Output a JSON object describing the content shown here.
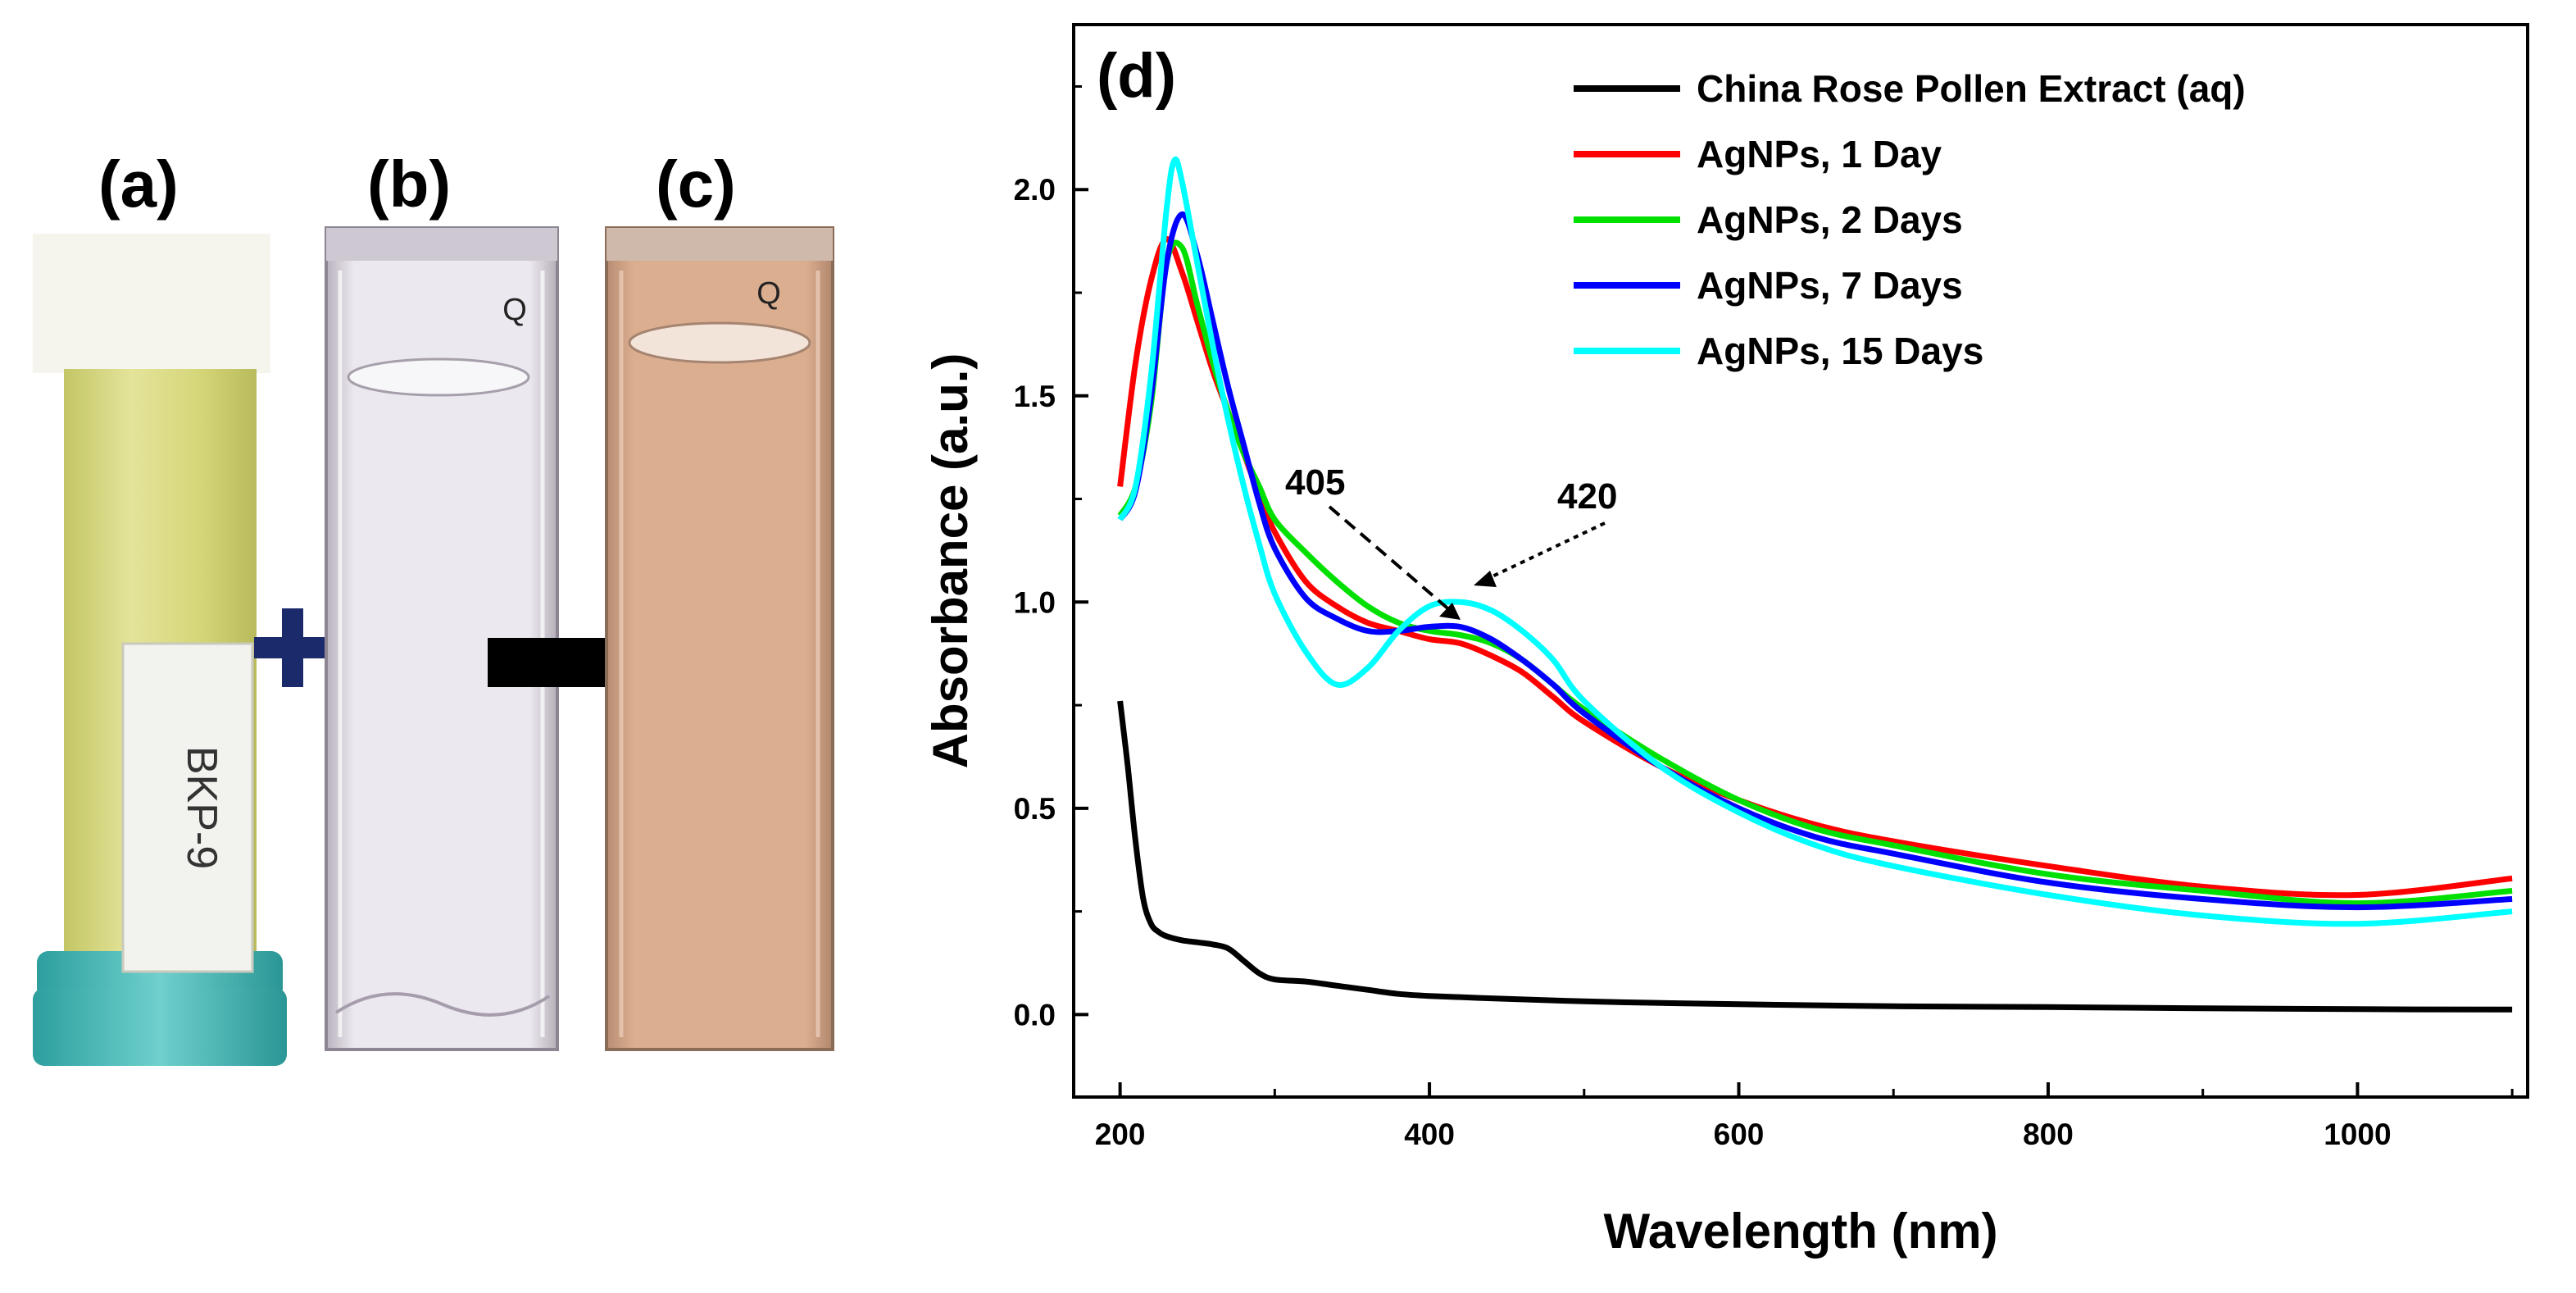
{
  "panels": {
    "a": {
      "label": "(a)",
      "tube_label": "BKP-9"
    },
    "b": {
      "label": "(b)",
      "mark": "Q"
    },
    "c": {
      "label": "(c)",
      "mark": "Q"
    },
    "d": {
      "label": "(d)"
    }
  },
  "colors": {
    "pollen_tube": "#d9da7a",
    "cap": "#49b8b6",
    "cuvette_clear": "#e7e3ea",
    "cuvette_brown": "#d8a98a",
    "plus": "#1b2a6b",
    "arrow": "#000000"
  },
  "chart_data": {
    "type": "line",
    "title": "",
    "xlabel": "Wavelength (nm)",
    "ylabel": "Absorbance (a.u.)",
    "xlim": [
      170,
      1110
    ],
    "ylim": [
      -0.2,
      2.4
    ],
    "xticks": [
      200,
      400,
      600,
      800,
      1000
    ],
    "yticks": [
      0.0,
      0.5,
      1.0,
      1.5,
      2.0
    ],
    "xtick_labels": [
      "200",
      "400",
      "600",
      "800",
      "1000"
    ],
    "ytick_labels": [
      "0.0",
      "0.5",
      "1.0",
      "1.5",
      "2.0"
    ],
    "legend_position": "top-right",
    "grid": false,
    "annotations": [
      {
        "text": "405",
        "x": 405
      },
      {
        "text": "420",
        "x": 420
      }
    ],
    "series": [
      {
        "name": "China Rose Pollen Extract (aq)",
        "color": "#000000",
        "x": [
          200,
          205,
          210,
          215,
          220,
          225,
          230,
          240,
          250,
          260,
          270,
          280,
          290,
          300,
          320,
          340,
          360,
          380,
          400,
          450,
          500,
          550,
          600,
          700,
          800,
          900,
          1000,
          1100
        ],
        "y": [
          0.76,
          0.6,
          0.42,
          0.28,
          0.22,
          0.2,
          0.19,
          0.18,
          0.175,
          0.17,
          0.16,
          0.13,
          0.1,
          0.085,
          0.08,
          0.07,
          0.06,
          0.05,
          0.045,
          0.038,
          0.032,
          0.028,
          0.025,
          0.02,
          0.018,
          0.015,
          0.013,
          0.012
        ]
      },
      {
        "name": "AgNPs, 1 Day",
        "color": "#ff0000",
        "x": [
          200,
          210,
          220,
          230,
          240,
          250,
          260,
          270,
          280,
          290,
          300,
          320,
          340,
          360,
          380,
          400,
          420,
          440,
          460,
          480,
          500,
          550,
          600,
          650,
          700,
          800,
          900,
          1000,
          1100
        ],
        "y": [
          1.28,
          1.58,
          1.78,
          1.88,
          1.8,
          1.68,
          1.56,
          1.46,
          1.36,
          1.26,
          1.17,
          1.05,
          0.99,
          0.95,
          0.93,
          0.91,
          0.9,
          0.87,
          0.83,
          0.77,
          0.71,
          0.6,
          0.52,
          0.46,
          0.42,
          0.36,
          0.31,
          0.29,
          0.33
        ]
      },
      {
        "name": "AgNPs, 2 Days",
        "color": "#00e000",
        "x": [
          200,
          210,
          220,
          230,
          240,
          250,
          260,
          270,
          280,
          290,
          300,
          320,
          340,
          360,
          380,
          400,
          420,
          440,
          460,
          480,
          500,
          550,
          600,
          650,
          700,
          800,
          900,
          1000,
          1100
        ],
        "y": [
          1.21,
          1.28,
          1.48,
          1.82,
          1.86,
          1.72,
          1.58,
          1.46,
          1.36,
          1.28,
          1.2,
          1.12,
          1.05,
          0.99,
          0.95,
          0.93,
          0.92,
          0.9,
          0.86,
          0.8,
          0.74,
          0.62,
          0.52,
          0.45,
          0.41,
          0.34,
          0.3,
          0.27,
          0.3
        ]
      },
      {
        "name": "AgNPs, 7 Days",
        "color": "#0000ff",
        "x": [
          200,
          210,
          220,
          230,
          240,
          250,
          260,
          270,
          280,
          290,
          300,
          320,
          340,
          360,
          380,
          400,
          420,
          440,
          460,
          480,
          500,
          550,
          600,
          650,
          700,
          800,
          900,
          1000,
          1100
        ],
        "y": [
          1.2,
          1.27,
          1.5,
          1.82,
          1.94,
          1.84,
          1.68,
          1.52,
          1.38,
          1.24,
          1.13,
          1.01,
          0.96,
          0.93,
          0.93,
          0.94,
          0.94,
          0.91,
          0.86,
          0.8,
          0.73,
          0.6,
          0.5,
          0.43,
          0.39,
          0.32,
          0.28,
          0.26,
          0.28
        ]
      },
      {
        "name": "AgNPs, 15 Days",
        "color": "#00ffff",
        "x": [
          200,
          210,
          220,
          230,
          235,
          240,
          250,
          260,
          270,
          280,
          290,
          300,
          320,
          340,
          360,
          380,
          400,
          420,
          440,
          460,
          480,
          500,
          550,
          600,
          650,
          700,
          800,
          900,
          1000,
          1100
        ],
        "y": [
          1.2,
          1.28,
          1.55,
          1.95,
          2.07,
          2.02,
          1.82,
          1.62,
          1.44,
          1.28,
          1.14,
          1.02,
          0.88,
          0.8,
          0.84,
          0.93,
          0.99,
          1.0,
          0.98,
          0.93,
          0.86,
          0.76,
          0.6,
          0.49,
          0.41,
          0.36,
          0.29,
          0.24,
          0.22,
          0.25
        ]
      }
    ]
  }
}
